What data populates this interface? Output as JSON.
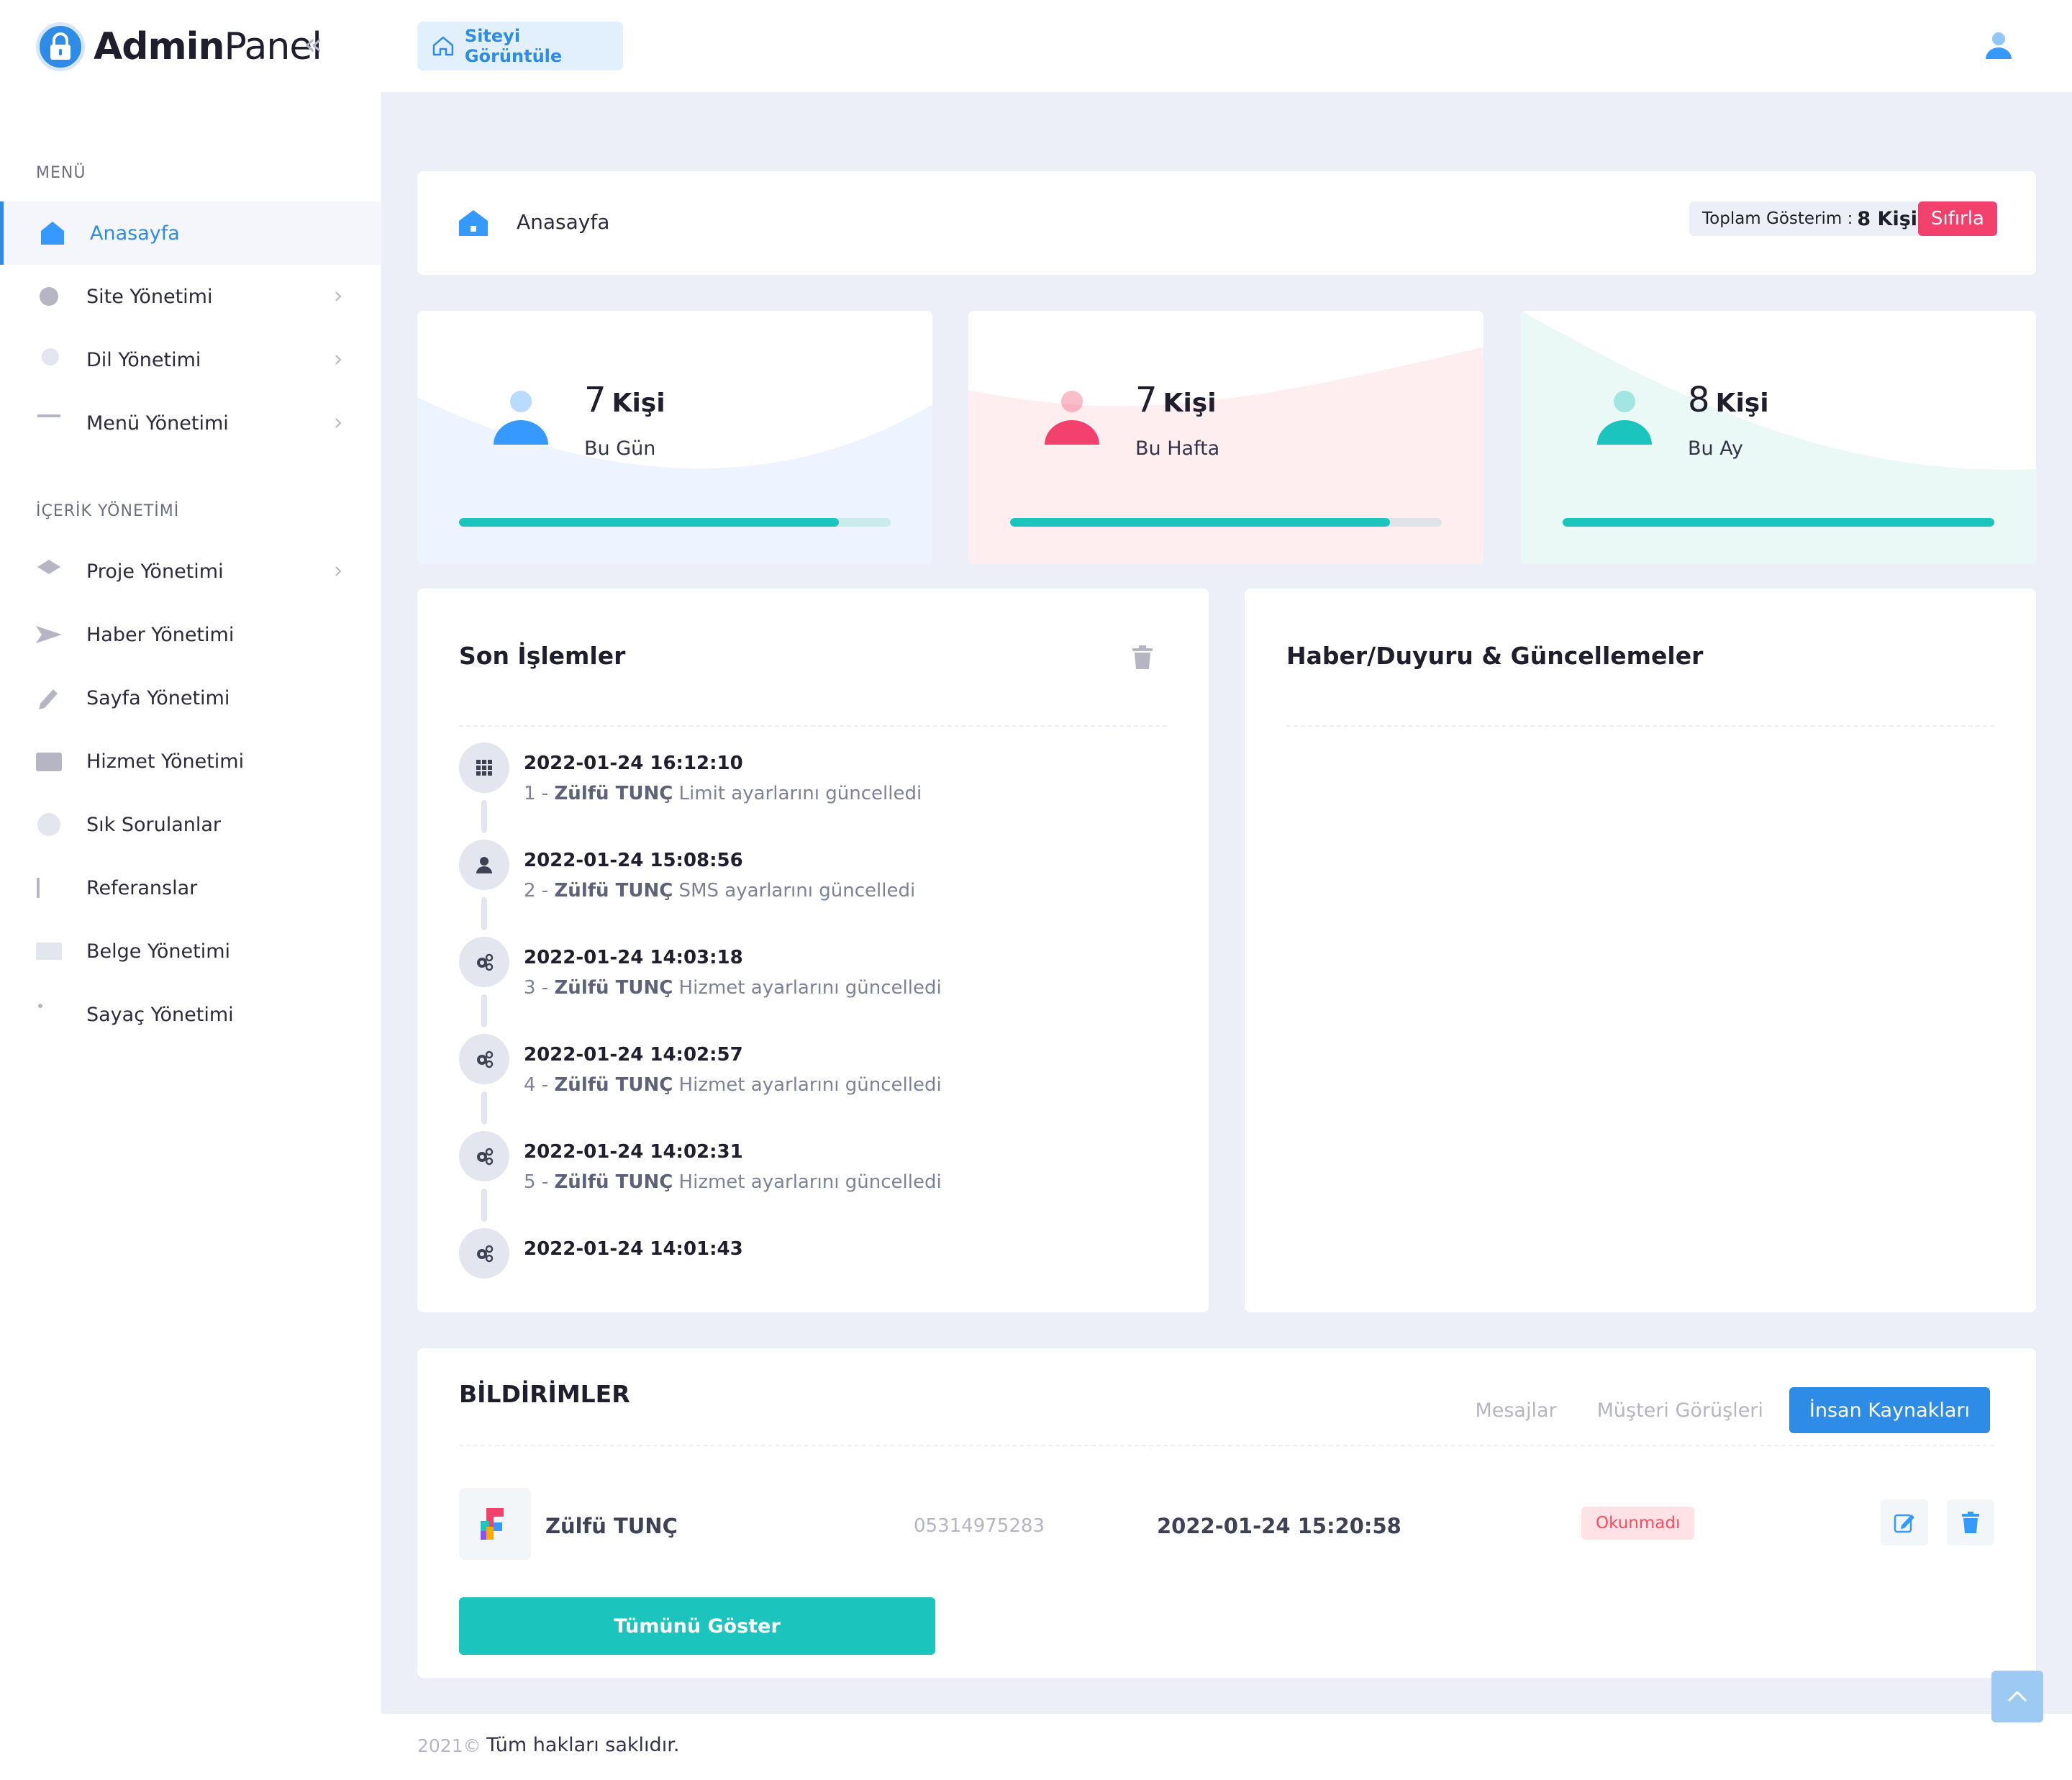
{
  "brand": {
    "bold": "Admin",
    "light": "Panel"
  },
  "sidebar": {
    "menu_title": "MENÜ",
    "menu_items": [
      {
        "label": "Anasayfa",
        "icon": "home-icon",
        "active": true
      },
      {
        "label": "Site Yönetimi",
        "icon": "gear-icon",
        "has_children": true
      },
      {
        "label": "Dil Yönetimi",
        "icon": "globe-icon",
        "has_children": true
      },
      {
        "label": "Menü Yönetimi",
        "icon": "menu-lines-icon",
        "has_children": true
      }
    ],
    "content_title": "İÇERİK YÖNETİMİ",
    "content_items": [
      {
        "label": "Proje Yönetimi",
        "icon": "layers-icon",
        "has_children": true
      },
      {
        "label": "Haber Yönetimi",
        "icon": "send-icon"
      },
      {
        "label": "Sayfa Yönetimi",
        "icon": "pencil-icon"
      },
      {
        "label": "Hizmet Yönetimi",
        "icon": "wallet-icon"
      },
      {
        "label": "Sık Sorulanlar",
        "icon": "question-icon"
      },
      {
        "label": "Referanslar",
        "icon": "barcode-icon"
      },
      {
        "label": "Belge Yönetimi",
        "icon": "document-icon"
      },
      {
        "label": "Sayaç Yönetimi",
        "icon": "dots-grid-icon"
      }
    ]
  },
  "topbar": {
    "view_site_label": "Siteyi Görüntüle"
  },
  "breadcrumb": {
    "label": "Anasayfa",
    "total_label": "Toplam Gösterim :",
    "total_value": "8 Kişi",
    "reset_label": "Sıfırla"
  },
  "stats": [
    {
      "count": "7",
      "unit": "Kişi",
      "period": "Bu Gün",
      "progress": 0.88,
      "accent": "#3699ff",
      "bg": "#edf4ff",
      "track": "#c9eceb"
    },
    {
      "count": "7",
      "unit": "Kişi",
      "period": "Bu Hafta",
      "progress": 0.88,
      "accent": "#f1416c",
      "bg": "#ffeef0",
      "track": "#dfe3e8"
    },
    {
      "count": "8",
      "unit": "Kişi",
      "period": "Bu Ay",
      "progress": 1.0,
      "accent": "#1bc5bd",
      "bg": "#eaf8f6",
      "track": "#c9eceb"
    }
  ],
  "activities": {
    "title": "Son İşlemler",
    "items": [
      {
        "time": "2022-01-24 16:12:10",
        "prefix": "1 - ",
        "user": "Zülfü TUNÇ",
        "action": " Limit ayarlarını güncelledi",
        "icon": "grid-icon"
      },
      {
        "time": "2022-01-24 15:08:56",
        "prefix": "2 - ",
        "user": "Zülfü TUNÇ",
        "action": " SMS ayarlarını güncelledi",
        "icon": "user-icon"
      },
      {
        "time": "2022-01-24 14:03:18",
        "prefix": "3 - ",
        "user": "Zülfü TUNÇ",
        "action": " Hizmet ayarlarını güncelledi",
        "icon": "gears-icon"
      },
      {
        "time": "2022-01-24 14:02:57",
        "prefix": "4 - ",
        "user": "Zülfü TUNÇ",
        "action": " Hizmet ayarlarını güncelledi",
        "icon": "gears-icon"
      },
      {
        "time": "2022-01-24 14:02:31",
        "prefix": "5 - ",
        "user": "Zülfü TUNÇ",
        "action": " Hizmet ayarlarını güncelledi",
        "icon": "gears-icon"
      },
      {
        "time": "2022-01-24 14:01:43",
        "prefix": "",
        "user": "",
        "action": "",
        "icon": "gears-icon"
      }
    ]
  },
  "news": {
    "title": "Haber/Duyuru & Güncellemeler"
  },
  "notifications": {
    "title": "BİLDİRİMLER",
    "tabs": [
      "Mesajlar",
      "Müşteri Görüşleri",
      "İnsan Kaynakları"
    ],
    "active_tab": 2,
    "row": {
      "name": "Zülfü TUNÇ",
      "phone": "05314975283",
      "date": "2022-01-24 15:20:58",
      "status": "Okunmadı"
    },
    "show_all_label": "Tümünü Göster"
  },
  "footer": {
    "year": "2021©",
    "copyright": "Tüm hakları saklıdır."
  }
}
